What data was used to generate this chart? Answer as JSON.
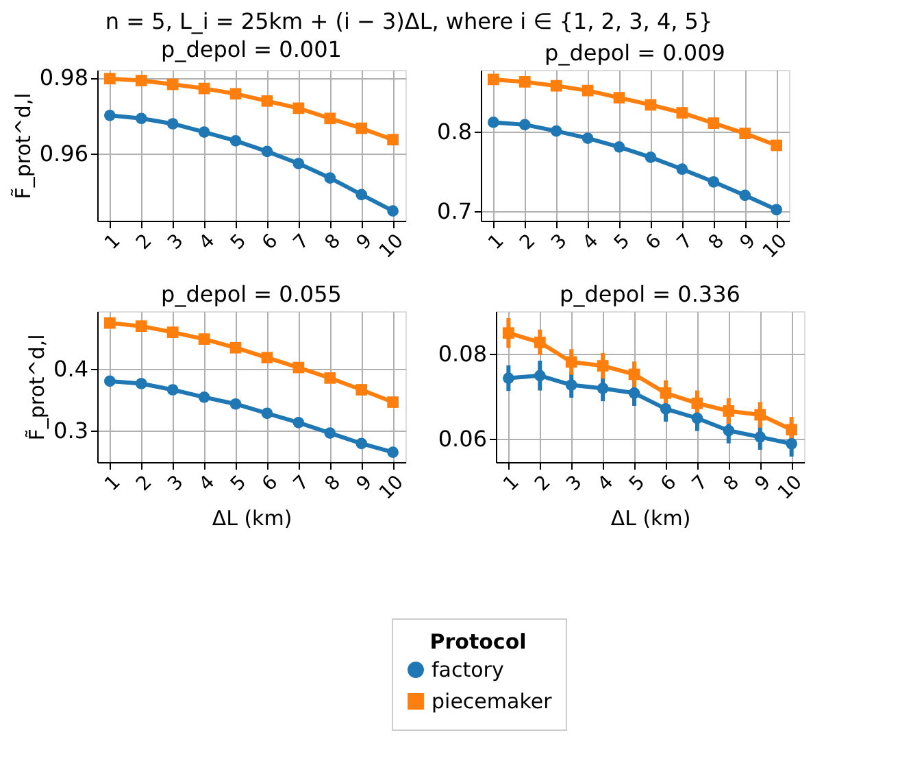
{
  "chart_data": [
    {
      "type": "line",
      "title": "p_depol = 0.001",
      "ylabel": "F̃_prot^d,l",
      "annotations": [
        "n = 5, L_i = 25km + (i − 3)ΔL, where i ∈ {1, 2, 3, 4, 5}"
      ],
      "legend_title": "Protocol",
      "legend": "bottom",
      "grid": true,
      "categories": [
        "1",
        "2",
        "3",
        "4",
        "5",
        "6",
        "7",
        "8",
        "9",
        "10"
      ],
      "ylim": [
        0.9422,
        0.982
      ],
      "yticks": [
        0.96,
        0.98
      ],
      "series": [
        {
          "name": "factory",
          "color": "#1f77b4",
          "marker": "circle",
          "values": [
            0.97,
            0.9692,
            0.9678,
            0.9656,
            0.9633,
            0.9605,
            0.9573,
            0.9535,
            0.9491,
            0.9448
          ]
        },
        {
          "name": "piecemaker",
          "color": "#ff7f0e",
          "marker": "square",
          "values": [
            0.9797,
            0.9792,
            0.9782,
            0.9771,
            0.9757,
            0.9738,
            0.9719,
            0.9692,
            0.9666,
            0.9636
          ]
        }
      ]
    },
    {
      "type": "line",
      "title": "p_depol = 0.009",
      "grid": true,
      "categories": [
        "1",
        "2",
        "3",
        "4",
        "5",
        "6",
        "7",
        "8",
        "9",
        "10"
      ],
      "ylim": [
        0.688,
        0.878
      ],
      "yticks": [
        0.7,
        0.8
      ],
      "series": [
        {
          "name": "factory",
          "color": "#1f77b4",
          "marker": "circle",
          "values": [
            0.812,
            0.809,
            0.801,
            0.792,
            0.781,
            0.768,
            0.753,
            0.737,
            0.72,
            0.702
          ]
        },
        {
          "name": "piecemaker",
          "color": "#ff7f0e",
          "marker": "square",
          "values": [
            0.866,
            0.863,
            0.858,
            0.852,
            0.843,
            0.834,
            0.824,
            0.811,
            0.798,
            0.783
          ]
        }
      ]
    },
    {
      "type": "line",
      "title": "p_depol = 0.055",
      "ylabel": "F̃_prot^d,l",
      "xlabel": "ΔL (km)",
      "grid": true,
      "categories": [
        "1",
        "2",
        "3",
        "4",
        "5",
        "6",
        "7",
        "8",
        "9",
        "10"
      ],
      "ylim": [
        0.249,
        0.493
      ],
      "yticks": [
        0.3,
        0.4
      ],
      "series": [
        {
          "name": "factory",
          "color": "#1f77b4",
          "marker": "circle",
          "values": [
            0.38,
            0.376,
            0.366,
            0.354,
            0.343,
            0.328,
            0.313,
            0.296,
            0.279,
            0.265
          ]
        },
        {
          "name": "piecemaker",
          "color": "#ff7f0e",
          "marker": "square",
          "values": [
            0.474,
            0.469,
            0.459,
            0.448,
            0.434,
            0.418,
            0.402,
            0.385,
            0.366,
            0.346
          ]
        }
      ]
    },
    {
      "type": "line",
      "title": "p_depol = 0.336",
      "xlabel": "ΔL (km)",
      "grid": true,
      "categories": [
        "1",
        "2",
        "3",
        "4",
        "5",
        "6",
        "7",
        "8",
        "9",
        "10"
      ],
      "ylim": [
        0.0546,
        0.09
      ],
      "yticks": [
        0.06,
        0.08
      ],
      "series": [
        {
          "name": "factory",
          "color": "#1f77b4",
          "marker": "circle",
          "values": [
            0.0743,
            0.0749,
            0.0727,
            0.0719,
            0.0708,
            0.0671,
            0.0649,
            0.062,
            0.0605,
            0.0589
          ],
          "errors": [
            0.003,
            0.0035,
            0.003,
            0.003,
            0.003,
            0.003,
            0.003,
            0.003,
            0.003,
            0.003
          ]
        },
        {
          "name": "piecemaker",
          "color": "#ff7f0e",
          "marker": "square",
          "values": [
            0.0849,
            0.0827,
            0.0781,
            0.0772,
            0.0752,
            0.0708,
            0.0684,
            0.0666,
            0.0657,
            0.0622
          ],
          "errors": [
            0.0035,
            0.003,
            0.003,
            0.003,
            0.003,
            0.003,
            0.003,
            0.003,
            0.003,
            0.003
          ]
        }
      ]
    }
  ]
}
